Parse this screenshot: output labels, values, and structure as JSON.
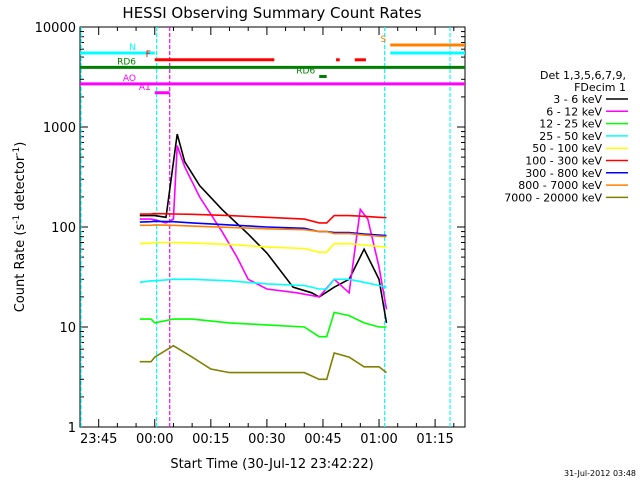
{
  "chart_data": {
    "type": "line",
    "title": "HESSI Observing Summary Count Rates",
    "xlabel": "Start Time (30-Jul-12 23:42:22)",
    "ylabel": "Count Rate (s",
    "ylabel_sup": "-1",
    "ylabel_tail": " detector",
    "ylabel_close": ")",
    "y_scale": "log",
    "ylim": [
      1,
      10000
    ],
    "xlim_minutes": [
      -20,
      83
    ],
    "x_tick_minutes": [
      -15,
      0,
      15,
      30,
      45,
      60,
      75
    ],
    "x_tick_labels": [
      "23:45",
      "00:00",
      "00:15",
      "00:30",
      "00:45",
      "01:00",
      "01:15"
    ],
    "y_tick_values": [
      1,
      10,
      100,
      1000,
      10000
    ],
    "y_tick_labels": [
      "1",
      "10",
      "100",
      "1000",
      "10000"
    ],
    "legend_header": [
      "Det 1,3,5,6,7,9,",
      "FDecim 1"
    ],
    "legend_placement": "right",
    "timestamp": "31-Jul-2012 03:48",
    "series": [
      {
        "name": "3 - 6 keV",
        "color": "#000000",
        "x": [
          -4,
          -3,
          -1,
          0,
          3,
          6,
          8,
          12,
          18,
          25,
          30,
          37,
          42,
          44,
          48,
          52,
          56,
          60,
          62
        ],
        "y": [
          130,
          130,
          130,
          130,
          125,
          850,
          450,
          260,
          150,
          85,
          55,
          25,
          22,
          20,
          25,
          30,
          60,
          30,
          11
        ]
      },
      {
        "name": "6 - 12 keV",
        "color": "#ff00ff",
        "x": [
          -4,
          -1,
          0,
          3,
          5,
          6,
          8,
          12,
          18,
          22,
          25,
          30,
          38,
          44,
          48,
          52,
          55,
          57,
          60,
          62
        ],
        "y": [
          120,
          120,
          118,
          110,
          120,
          650,
          400,
          200,
          90,
          50,
          30,
          24,
          22,
          20,
          30,
          22,
          150,
          120,
          40,
          15
        ]
      },
      {
        "name": "12 - 25 keV",
        "color": "#00ff00",
        "x": [
          -4,
          -1,
          0,
          5,
          10,
          20,
          30,
          40,
          44,
          46,
          48,
          52,
          56,
          60,
          62
        ],
        "y": [
          12,
          12,
          11,
          12,
          12,
          11,
          10.5,
          10,
          8,
          8,
          14,
          13,
          11,
          10,
          10
        ]
      },
      {
        "name": "25 - 50 keV",
        "color": "#00ffff",
        "x": [
          -4,
          -1,
          0,
          5,
          10,
          20,
          30,
          40,
          44,
          46,
          48,
          52,
          56,
          60,
          62
        ],
        "y": [
          28,
          29,
          29,
          30,
          30,
          29,
          27,
          26,
          24,
          24,
          30,
          30,
          28,
          26,
          25
        ]
      },
      {
        "name": "50 - 100 keV",
        "color": "#ffff00",
        "x": [
          -4,
          -1,
          0,
          5,
          10,
          20,
          30,
          40,
          44,
          46,
          48,
          52,
          56,
          60,
          62
        ],
        "y": [
          68,
          69,
          70,
          70,
          69,
          67,
          63,
          61,
          56,
          56,
          68,
          68,
          66,
          64,
          63
        ]
      },
      {
        "name": "100 - 300 keV",
        "color": "#ff0000",
        "x": [
          -4,
          -1,
          0,
          5,
          10,
          20,
          30,
          40,
          44,
          46,
          48,
          52,
          56,
          60,
          62
        ],
        "y": [
          135,
          135,
          136,
          135,
          134,
          130,
          125,
          120,
          110,
          110,
          130,
          130,
          128,
          125,
          124
        ]
      },
      {
        "name": "300 - 800 keV",
        "color": "#0000ff",
        "x": [
          -4,
          -1,
          0,
          5,
          10,
          20,
          30,
          40,
          44,
          46,
          48,
          52,
          56,
          60,
          62
        ],
        "y": [
          112,
          113,
          114,
          113,
          110,
          105,
          100,
          97,
          90,
          90,
          88,
          88,
          85,
          83,
          82
        ]
      },
      {
        "name": "800 - 7000 keV",
        "color": "#ff8000",
        "x": [
          -4,
          -1,
          0,
          5,
          10,
          20,
          30,
          40,
          44,
          46,
          48,
          52,
          56,
          60,
          62
        ],
        "y": [
          104,
          104,
          105,
          104,
          102,
          99,
          96,
          94,
          90,
          90,
          86,
          86,
          83,
          81,
          80
        ]
      },
      {
        "name": "7000 - 20000 keV",
        "color": "#808000",
        "x": [
          -4,
          -1,
          0,
          5,
          10,
          15,
          20,
          30,
          40,
          44,
          46,
          48,
          52,
          56,
          60,
          62
        ],
        "y": [
          4.5,
          4.5,
          5,
          6.5,
          5,
          3.8,
          3.5,
          3.5,
          3.5,
          3,
          3,
          5.5,
          5,
          4,
          4,
          3.5
        ]
      }
    ],
    "flag_bars": [
      {
        "label": "N",
        "color": "#00ffff",
        "y": 5500,
        "segments": [
          [
            -20,
            0
          ],
          [
            63,
            83
          ]
        ]
      },
      {
        "label": "S",
        "color": "#ff8000",
        "y": 6600,
        "segments": [
          [
            63,
            83
          ]
        ]
      },
      {
        "label": "F",
        "color": "#ff0000",
        "y": 4700,
        "segments": [
          [
            0,
            32
          ],
          [
            48.5,
            49.5
          ],
          [
            53.5,
            56.5
          ]
        ]
      },
      {
        "label": "RD6",
        "color": "#008000",
        "y": 3950,
        "segments": [
          [
            -20,
            83
          ]
        ]
      },
      {
        "label": "RD6",
        "color": "#008000",
        "y": 3200,
        "segments": [
          [
            44,
            46
          ]
        ]
      },
      {
        "label": "AO",
        "color": "#ff00ff",
        "y": 2700,
        "segments": [
          [
            -20,
            83
          ]
        ]
      },
      {
        "label": "A1",
        "color": "#ff00ff",
        "y": 2200,
        "segments": [
          [
            0,
            4
          ]
        ]
      }
    ],
    "vertical_markers": [
      {
        "color": "#00ffff",
        "x": [
          -20,
          0.5,
          61.5,
          79
        ]
      },
      {
        "color": "#ff00ff",
        "x": [
          4
        ]
      }
    ]
  }
}
